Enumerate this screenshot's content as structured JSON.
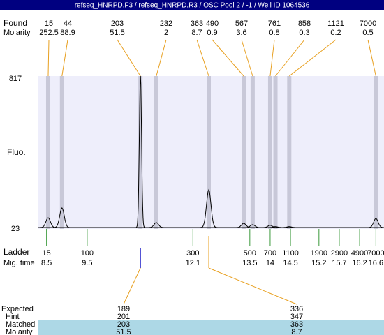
{
  "chart_data": {
    "type": "electropherogram",
    "title": "refseq_HNRPD.F3 / refseq_HNRPD.R3 / OSC Pool 2 / -1 / Well ID 1064536",
    "found_label": "Found",
    "found_molarity_label": "Molarity",
    "y_label": "Fluo.",
    "ylim": [
      23,
      817
    ],
    "yticks": [
      23,
      817
    ],
    "xlim": [
      8.3,
      16.8
    ],
    "peaks": {
      "sizes": [
        15,
        44,
        203,
        232,
        363,
        490,
        567,
        761,
        858,
        1121,
        7000
      ],
      "molarities": [
        252.5,
        88.9,
        51.5,
        2,
        8.7,
        0.9,
        3.6,
        0.8,
        0.3,
        0.2,
        0.5
      ],
      "times": [
        8.54,
        8.88,
        10.81,
        11.2,
        12.49,
        13.35,
        13.57,
        14.0,
        14.13,
        14.47,
        16.6
      ],
      "heights": [
        81,
        132,
        817,
        56,
        226,
        52,
        45,
        42,
        35,
        35,
        77
      ]
    },
    "ladder": {
      "label": "Ladder",
      "time_label": "Mig. time",
      "sizes": [
        15,
        100,
        300,
        500,
        700,
        1100,
        1900,
        2900,
        4900,
        7000
      ],
      "times": [
        8.5,
        9.5,
        12.1,
        13.5,
        14,
        14.5,
        15.2,
        15.7,
        16.2,
        16.6
      ]
    },
    "expected": {
      "labels": [
        "Expected",
        "Hint",
        "Matched",
        "Molarity"
      ],
      "expected": [
        189,
        336
      ],
      "hint": [
        201,
        347
      ],
      "matched": [
        203,
        363
      ],
      "molarity": [
        51.5,
        8.7
      ]
    }
  }
}
